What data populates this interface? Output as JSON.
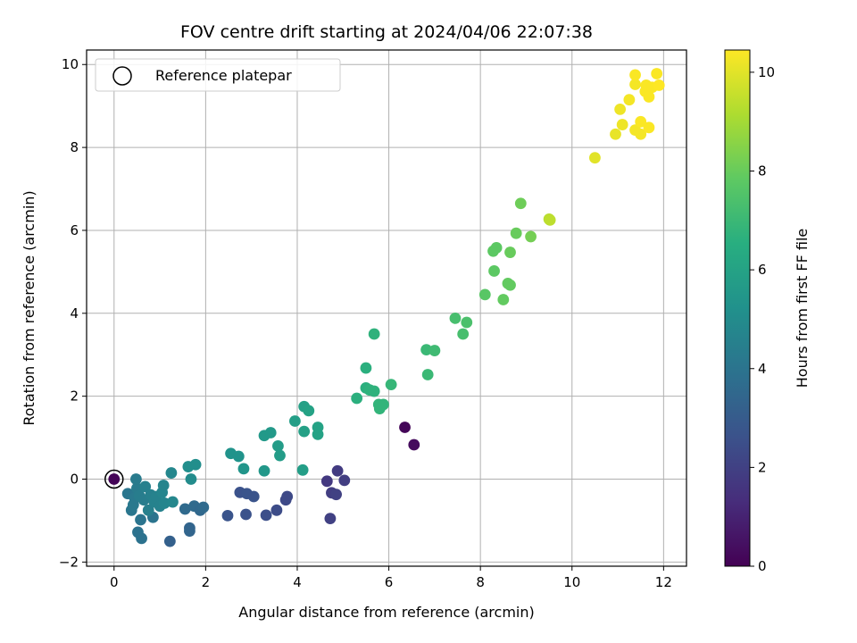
{
  "chart_data": {
    "type": "scatter",
    "title": "FOV centre drift starting at 2024/04/06 22:07:38",
    "xlabel": "Angular distance from reference (arcmin)",
    "ylabel": "Rotation from reference (arcmin)",
    "xlim": [
      -0.6,
      12.5
    ],
    "ylim": [
      -2.1,
      10.35
    ],
    "xticks": [
      "0",
      "2",
      "4",
      "6",
      "8",
      "10",
      "12"
    ],
    "yticks": [
      "−2",
      "0",
      "2",
      "4",
      "6",
      "8",
      "10"
    ],
    "grid": true,
    "legend": {
      "placement": "top-left",
      "entries": [
        "Reference platepar"
      ]
    },
    "colorbar": {
      "label": "Hours from first FF file",
      "colormap": "viridis",
      "range": [
        0,
        10.45
      ],
      "ticks": [
        "0",
        "2",
        "4",
        "6",
        "8",
        "10"
      ]
    },
    "reference_point": {
      "x": 0,
      "y": 0,
      "c": 0.1
    },
    "points": [
      {
        "x": 6.35,
        "y": 1.25,
        "c": 0.15
      },
      {
        "x": 6.55,
        "y": 0.83,
        "c": 0.3
      },
      {
        "x": 4.65,
        "y": -0.05,
        "c": 1.7
      },
      {
        "x": 4.88,
        "y": 0.2,
        "c": 1.8
      },
      {
        "x": 5.03,
        "y": -0.03,
        "c": 1.9
      },
      {
        "x": 4.75,
        "y": -0.33,
        "c": 1.9
      },
      {
        "x": 4.85,
        "y": -0.37,
        "c": 2.0
      },
      {
        "x": 4.72,
        "y": -0.95,
        "c": 2.0
      },
      {
        "x": 3.78,
        "y": -0.42,
        "c": 2.3
      },
      {
        "x": 3.75,
        "y": -0.5,
        "c": 2.3
      },
      {
        "x": 3.55,
        "y": -0.75,
        "c": 2.4
      },
      {
        "x": 3.32,
        "y": -0.87,
        "c": 2.5
      },
      {
        "x": 2.88,
        "y": -0.85,
        "c": 2.6
      },
      {
        "x": 2.48,
        "y": -0.88,
        "c": 2.7
      },
      {
        "x": 2.75,
        "y": -0.32,
        "c": 2.6
      },
      {
        "x": 2.9,
        "y": -0.35,
        "c": 2.7
      },
      {
        "x": 3.05,
        "y": -0.42,
        "c": 2.7
      },
      {
        "x": 1.22,
        "y": -1.5,
        "c": 3.2
      },
      {
        "x": 1.65,
        "y": -1.18,
        "c": 3.4
      },
      {
        "x": 1.65,
        "y": -1.25,
        "c": 3.4
      },
      {
        "x": 1.55,
        "y": -0.72,
        "c": 3.6
      },
      {
        "x": 1.75,
        "y": -0.65,
        "c": 3.6
      },
      {
        "x": 1.88,
        "y": -0.75,
        "c": 3.5
      },
      {
        "x": 1.95,
        "y": -0.68,
        "c": 3.6
      },
      {
        "x": 0.52,
        "y": -1.28,
        "c": 3.9
      },
      {
        "x": 0.6,
        "y": -1.43,
        "c": 3.9
      },
      {
        "x": 0.58,
        "y": -0.98,
        "c": 4.0
      },
      {
        "x": 0.85,
        "y": -0.92,
        "c": 4.0
      },
      {
        "x": 0.38,
        "y": -0.75,
        "c": 4.1
      },
      {
        "x": 0.3,
        "y": -0.35,
        "c": 4.1
      },
      {
        "x": 0.42,
        "y": -0.62,
        "c": 4.2
      },
      {
        "x": 0.45,
        "y": -0.45,
        "c": 4.2
      },
      {
        "x": 0.5,
        "y": -0.22,
        "c": 4.3
      },
      {
        "x": 0.48,
        "y": 0.0,
        "c": 4.3
      },
      {
        "x": 0.55,
        "y": -0.4,
        "c": 4.4
      },
      {
        "x": 0.65,
        "y": -0.5,
        "c": 4.4
      },
      {
        "x": 0.68,
        "y": -0.18,
        "c": 4.5
      },
      {
        "x": 0.75,
        "y": -0.75,
        "c": 4.5
      },
      {
        "x": 0.8,
        "y": -0.38,
        "c": 4.5
      },
      {
        "x": 0.88,
        "y": -0.55,
        "c": 4.6
      },
      {
        "x": 0.92,
        "y": -0.42,
        "c": 4.6
      },
      {
        "x": 1.0,
        "y": -0.65,
        "c": 4.6
      },
      {
        "x": 1.05,
        "y": -0.32,
        "c": 4.7
      },
      {
        "x": 1.08,
        "y": -0.15,
        "c": 4.7
      },
      {
        "x": 1.1,
        "y": -0.58,
        "c": 4.7
      },
      {
        "x": 1.28,
        "y": -0.55,
        "c": 4.8
      },
      {
        "x": 1.25,
        "y": 0.15,
        "c": 4.8
      },
      {
        "x": 1.68,
        "y": 0.0,
        "c": 5.0
      },
      {
        "x": 1.62,
        "y": 0.3,
        "c": 5.1
      },
      {
        "x": 1.78,
        "y": 0.35,
        "c": 5.1
      },
      {
        "x": 2.55,
        "y": 0.62,
        "c": 5.3
      },
      {
        "x": 2.72,
        "y": 0.55,
        "c": 5.3
      },
      {
        "x": 2.83,
        "y": 0.25,
        "c": 5.4
      },
      {
        "x": 3.28,
        "y": 0.2,
        "c": 5.5
      },
      {
        "x": 3.28,
        "y": 1.05,
        "c": 5.6
      },
      {
        "x": 3.42,
        "y": 1.12,
        "c": 5.6
      },
      {
        "x": 3.58,
        "y": 0.8,
        "c": 5.7
      },
      {
        "x": 3.62,
        "y": 0.57,
        "c": 5.7
      },
      {
        "x": 3.95,
        "y": 1.4,
        "c": 5.8
      },
      {
        "x": 4.12,
        "y": 0.22,
        "c": 5.8
      },
      {
        "x": 4.15,
        "y": 1.15,
        "c": 5.9
      },
      {
        "x": 4.15,
        "y": 1.75,
        "c": 5.9
      },
      {
        "x": 4.25,
        "y": 1.65,
        "c": 6.0
      },
      {
        "x": 4.45,
        "y": 1.08,
        "c": 6.0
      },
      {
        "x": 4.45,
        "y": 1.25,
        "c": 6.0
      },
      {
        "x": 5.3,
        "y": 1.95,
        "c": 6.6
      },
      {
        "x": 5.5,
        "y": 2.2,
        "c": 6.6
      },
      {
        "x": 5.5,
        "y": 2.68,
        "c": 6.6
      },
      {
        "x": 5.58,
        "y": 2.15,
        "c": 6.7
      },
      {
        "x": 5.68,
        "y": 2.12,
        "c": 6.7
      },
      {
        "x": 5.68,
        "y": 3.5,
        "c": 6.7
      },
      {
        "x": 5.78,
        "y": 1.8,
        "c": 6.8
      },
      {
        "x": 5.8,
        "y": 1.7,
        "c": 6.8
      },
      {
        "x": 5.88,
        "y": 1.8,
        "c": 6.8
      },
      {
        "x": 6.05,
        "y": 2.28,
        "c": 6.9
      },
      {
        "x": 6.82,
        "y": 3.12,
        "c": 7.0
      },
      {
        "x": 6.85,
        "y": 2.52,
        "c": 7.0
      },
      {
        "x": 7.0,
        "y": 3.1,
        "c": 7.1
      },
      {
        "x": 7.45,
        "y": 3.88,
        "c": 7.3
      },
      {
        "x": 7.62,
        "y": 3.5,
        "c": 7.3
      },
      {
        "x": 7.7,
        "y": 3.78,
        "c": 7.4
      },
      {
        "x": 8.1,
        "y": 4.45,
        "c": 7.7
      },
      {
        "x": 8.3,
        "y": 5.02,
        "c": 7.8
      },
      {
        "x": 8.28,
        "y": 5.5,
        "c": 7.8
      },
      {
        "x": 8.35,
        "y": 5.58,
        "c": 7.8
      },
      {
        "x": 8.5,
        "y": 4.33,
        "c": 7.9
      },
      {
        "x": 8.6,
        "y": 4.72,
        "c": 7.9
      },
      {
        "x": 8.65,
        "y": 4.68,
        "c": 7.9
      },
      {
        "x": 8.65,
        "y": 5.47,
        "c": 8.0
      },
      {
        "x": 8.78,
        "y": 5.93,
        "c": 8.0
      },
      {
        "x": 8.88,
        "y": 6.65,
        "c": 8.1
      },
      {
        "x": 9.1,
        "y": 5.85,
        "c": 8.2
      },
      {
        "x": 9.5,
        "y": 6.27,
        "c": 9.3
      },
      {
        "x": 9.52,
        "y": 6.25,
        "c": 9.4
      },
      {
        "x": 10.5,
        "y": 7.75,
        "c": 10.0
      },
      {
        "x": 10.95,
        "y": 8.32,
        "c": 10.1
      },
      {
        "x": 11.05,
        "y": 8.92,
        "c": 10.2
      },
      {
        "x": 11.1,
        "y": 8.55,
        "c": 10.2
      },
      {
        "x": 11.25,
        "y": 9.15,
        "c": 10.3
      },
      {
        "x": 11.38,
        "y": 8.42,
        "c": 10.3
      },
      {
        "x": 11.38,
        "y": 9.52,
        "c": 10.3
      },
      {
        "x": 11.38,
        "y": 9.75,
        "c": 10.4
      },
      {
        "x": 11.5,
        "y": 8.32,
        "c": 10.3
      },
      {
        "x": 11.5,
        "y": 8.62,
        "c": 10.4
      },
      {
        "x": 11.6,
        "y": 9.35,
        "c": 10.4
      },
      {
        "x": 11.62,
        "y": 9.5,
        "c": 10.4
      },
      {
        "x": 11.68,
        "y": 9.22,
        "c": 10.4
      },
      {
        "x": 11.68,
        "y": 8.48,
        "c": 10.4
      },
      {
        "x": 11.75,
        "y": 9.45,
        "c": 10.4
      },
      {
        "x": 11.85,
        "y": 9.78,
        "c": 10.4
      },
      {
        "x": 11.9,
        "y": 9.5,
        "c": 10.45
      }
    ]
  }
}
